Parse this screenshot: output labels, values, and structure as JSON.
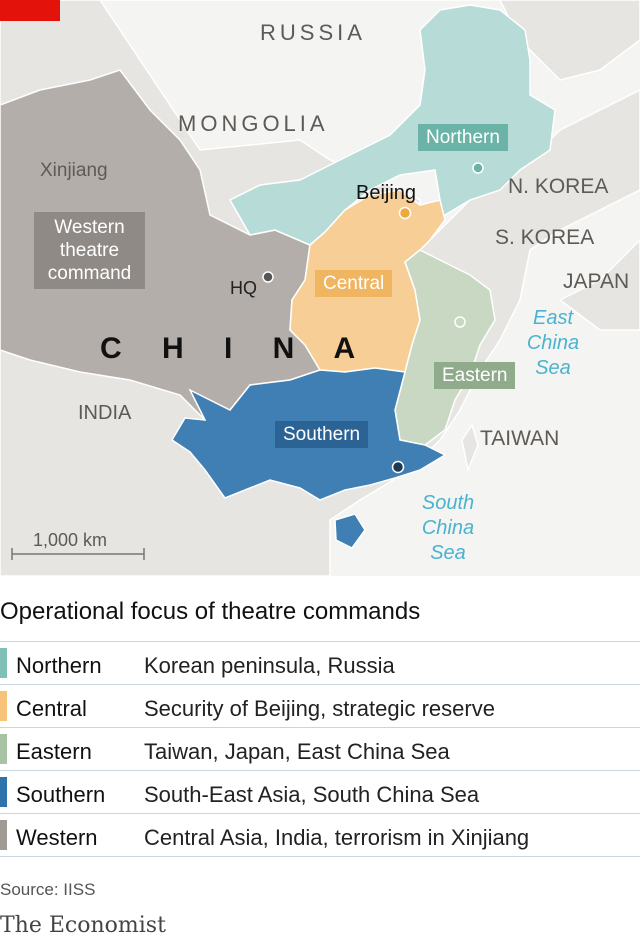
{
  "colors": {
    "northern": "#b7dbd6",
    "central": "#f7cf96",
    "eastern": "#c8d8c3",
    "southern": "#3f7fb3",
    "western": "#b3aea9",
    "land": "#e6e5e2",
    "sea": "#ffffff",
    "brand_tag": "#e3120b"
  },
  "map": {
    "countries": [
      "RUSSIA",
      "MONGOLIA",
      "N. KOREA",
      "S. KOREA",
      "JAPAN",
      "TAIWAN",
      "INDIA"
    ],
    "china_label": "C H I N A",
    "places": {
      "xinjiang": "Xinjiang",
      "beijing": "Beijing",
      "hq": "HQ"
    },
    "commands": {
      "northern": "Northern",
      "western": "Western theatre command",
      "central": "Central",
      "eastern": "Eastern",
      "southern": "Southern"
    },
    "seas": {
      "east_china": "East China Sea",
      "south_china": "South China Sea"
    },
    "scale": "1,000 km"
  },
  "title": "Operational focus of theatre commands",
  "legend": [
    {
      "name": "Northern",
      "focus": "Korean peninsula, Russia",
      "color": "#7fbfb5"
    },
    {
      "name": "Central",
      "focus": "Security of Beijing, strategic reserve",
      "color": "#f7c37a"
    },
    {
      "name": "Eastern",
      "focus": "Taiwan, Japan, East China Sea",
      "color": "#a7c3a3"
    },
    {
      "name": "Southern",
      "focus": "South-East Asia, South China Sea",
      "color": "#2e74ab"
    },
    {
      "name": "Western",
      "focus": "Central Asia, India, terrorism in Xinjiang",
      "color": "#9f9a94"
    }
  ],
  "source": "Source: IISS",
  "brand": "The Economist"
}
